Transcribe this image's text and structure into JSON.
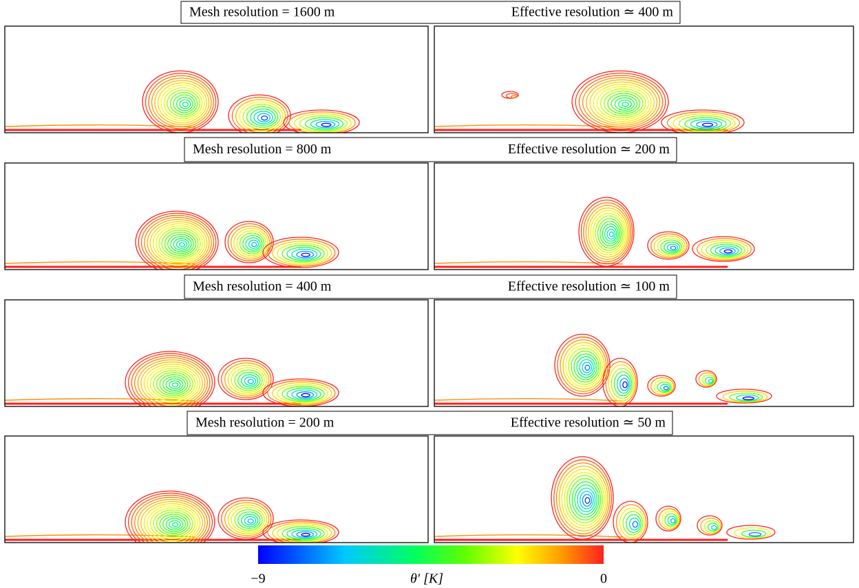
{
  "rows": [
    {
      "mesh": "Mesh resolution = 1600 m",
      "effective": "Effective resolution ≃ 400 m"
    },
    {
      "mesh": "Mesh resolution = 800 m",
      "effective": "Effective resolution ≃ 200 m"
    },
    {
      "mesh": "Mesh resolution = 400 m",
      "effective": "Effective resolution ≃ 100 m"
    },
    {
      "mesh": "Mesh resolution = 200 m",
      "effective": "Effective resolution ≃ 50 m"
    }
  ],
  "colorbar": {
    "label": "θ′ [K]",
    "lim": [
      -9,
      0
    ],
    "ticks": [
      {
        "value": -9,
        "label": "−9"
      },
      {
        "value": 0,
        "label": "0"
      }
    ]
  }
}
